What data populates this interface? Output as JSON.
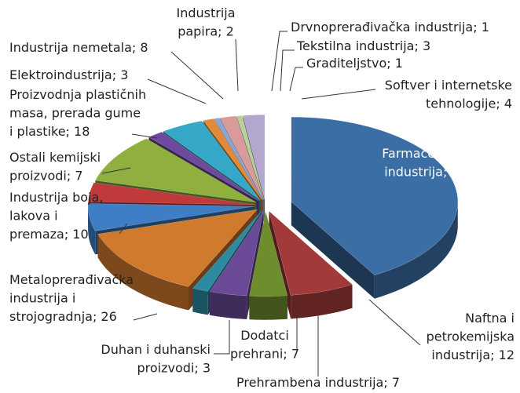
{
  "chart_data": {
    "type": "pie3d",
    "labels": [
      [
        "Farmaceutska",
        "industrija; 80"
      ],
      [
        "Naftna i",
        "petrokemijska",
        "industrija; 12"
      ],
      [
        "Prehrambena industrija; 7"
      ],
      [
        "Dodatci",
        "prehrani; 7"
      ],
      [
        "Duhan i duhanski",
        "proizvodi; 3"
      ],
      [
        "Metaloprerađivačka",
        "industrija i",
        "strojogradnja; 26"
      ],
      [
        "Industrija boja,",
        "lakova i",
        "premaza; 10"
      ],
      [
        "Ostali kemijski",
        "proizvodi; 7"
      ],
      [
        "Proizvodnja plastičnih",
        "masa, prerada gume",
        "i plastike; 18"
      ],
      [
        "Elektroindustrija; 3"
      ],
      [
        "Industrija nemetala; 8"
      ],
      [
        "Industrija",
        "papira; 2"
      ],
      [
        "Drvnoprerađivačka industrija; 1"
      ],
      [
        "Tekstilna industrija; 3"
      ],
      [
        "Graditeljstvo; 1"
      ],
      [
        "Softver i internetske",
        "tehnologije; 4"
      ]
    ],
    "values": [
      80,
      12,
      7,
      7,
      3,
      26,
      10,
      7,
      18,
      3,
      8,
      2,
      1,
      3,
      1,
      4
    ],
    "colors": [
      "#3a6ea5",
      "#a33a3a",
      "#6e8e2e",
      "#6a4a96",
      "#2e8aa0",
      "#d07a2e",
      "#3e7ec4",
      "#c0393b",
      "#8fb03e",
      "#6e4a9e",
      "#35a8c8",
      "#e08a3a",
      "#8aa5d5",
      "#d99a9a",
      "#b8d09a",
      "#b3a6cf"
    ]
  }
}
